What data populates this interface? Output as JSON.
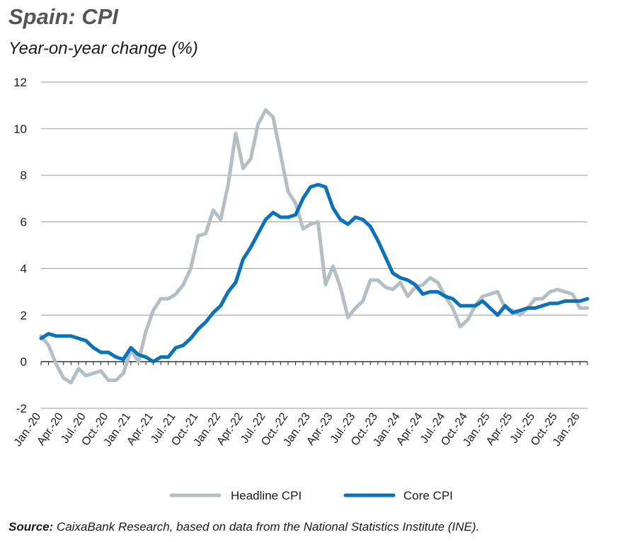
{
  "header": {
    "title": "Spain: CPI",
    "subtitle": "Year-on-year change (%)"
  },
  "footer": {
    "source_label": "Source:",
    "source_text": "CaixaBank Research, based on data from the National Statistics Institute (INE)."
  },
  "colors": {
    "headline": "#b4bec3",
    "core": "#0a72b8",
    "grid": "#9a9a9a"
  },
  "chart_data": {
    "type": "line",
    "title": "Spain: CPI",
    "subtitle": "Year-on-year change (%)",
    "ylim": [
      -2,
      12
    ],
    "yticks": [
      -2,
      0,
      2,
      4,
      6,
      8,
      10,
      12
    ],
    "grid": true,
    "legend": "bottom-center",
    "x": [
      "Jan.-20",
      "Feb.-20",
      "Mar.-20",
      "Apr.-20",
      "May-20",
      "Jun.-20",
      "Jul.-20",
      "Aug.-20",
      "Sep.-20",
      "Oct.-20",
      "Nov.-20",
      "Dec.-20",
      "Jan.-21",
      "Feb.-21",
      "Mar.-21",
      "Apr.-21",
      "May-21",
      "Jun.-21",
      "Jul.-21",
      "Aug.-21",
      "Sep.-21",
      "Oct.-21",
      "Nov.-21",
      "Dec.-21",
      "Jan.-22",
      "Feb.-22",
      "Mar.-22",
      "Apr.-22",
      "May-22",
      "Jun.-22",
      "Jul.-22",
      "Aug.-22",
      "Sep.-22",
      "Oct.-22",
      "Nov.-22",
      "Dec.-22",
      "Jan.-23",
      "Feb.-23",
      "Mar.-23",
      "Apr.-23",
      "May-23",
      "Jun.-23",
      "Jul.-23",
      "Aug.-23",
      "Sep.-23",
      "Oct.-23",
      "Nov.-23",
      "Dec.-23",
      "Jan.-24",
      "Feb.-24",
      "Mar.-24",
      "Apr.-24",
      "May-24",
      "Jun.-24",
      "Jul.-24",
      "Aug.-24",
      "Sep.-24",
      "Oct.-24",
      "Nov.-24",
      "Dec.-24",
      "Jan.-25",
      "Feb.-25",
      "Mar.-25",
      "Apr.-25",
      "May-25",
      "Jun.-25",
      "Jul.-25",
      "Aug.-25",
      "Sep.-25",
      "Oct.-25",
      "Nov.-25",
      "Dec.-25",
      "Jan.-26",
      "Feb.-26"
    ],
    "tick_labels": [
      "Jan.-20",
      "Apr.-20",
      "Jul.-20",
      "Oct.-20",
      "Jan.-21",
      "Apr.-21",
      "Jul.-21",
      "Oct.-21",
      "Jan.-22",
      "Apr.-22",
      "Jul.-22",
      "Oct.-22",
      "Jan.-23",
      "Apr.-23",
      "Jul.-23",
      "Oct.-23",
      "Jan.-24",
      "Apr.-24",
      "Jul.-24",
      "Oct.-24",
      "Jan.-25",
      "Apr.-25",
      "Jul.-25",
      "Oct.-25",
      "Jan.-26"
    ],
    "series": [
      {
        "name": "Headline CPI",
        "values": [
          1.1,
          0.7,
          -0.1,
          -0.7,
          -0.9,
          -0.3,
          -0.6,
          -0.5,
          -0.4,
          -0.8,
          -0.8,
          -0.5,
          0.5,
          0.0,
          1.3,
          2.2,
          2.7,
          2.7,
          2.9,
          3.3,
          4.0,
          5.4,
          5.5,
          6.5,
          6.1,
          7.6,
          9.8,
          8.3,
          8.7,
          10.2,
          10.8,
          10.5,
          8.9,
          7.3,
          6.8,
          5.7,
          5.9,
          6.0,
          3.3,
          4.1,
          3.2,
          1.9,
          2.3,
          2.6,
          3.5,
          3.5,
          3.2,
          3.1,
          3.4,
          2.8,
          3.2,
          3.3,
          3.6,
          3.4,
          2.8,
          2.3,
          1.5,
          1.8,
          2.4,
          2.8,
          2.9,
          3.0,
          2.3,
          2.2,
          2.0,
          2.3,
          2.7,
          2.7,
          3.0,
          3.1,
          3.0,
          2.9,
          2.3,
          2.3
        ]
      },
      {
        "name": "Core CPI",
        "values": [
          1.0,
          1.2,
          1.1,
          1.1,
          1.1,
          1.0,
          0.9,
          0.6,
          0.4,
          0.4,
          0.2,
          0.1,
          0.6,
          0.3,
          0.2,
          0.0,
          0.2,
          0.2,
          0.6,
          0.7,
          1.0,
          1.4,
          1.7,
          2.1,
          2.4,
          3.0,
          3.4,
          4.4,
          4.9,
          5.5,
          6.1,
          6.4,
          6.2,
          6.2,
          6.3,
          7.0,
          7.5,
          7.6,
          7.5,
          6.6,
          6.1,
          5.9,
          6.2,
          6.1,
          5.8,
          5.2,
          4.5,
          3.8,
          3.6,
          3.5,
          3.3,
          2.9,
          3.0,
          3.0,
          2.8,
          2.7,
          2.4,
          2.4,
          2.4,
          2.6,
          2.3,
          2.0,
          2.4,
          2.1,
          2.2,
          2.3,
          2.3,
          2.4,
          2.5,
          2.5,
          2.6,
          2.6,
          2.6,
          2.7
        ]
      }
    ]
  }
}
